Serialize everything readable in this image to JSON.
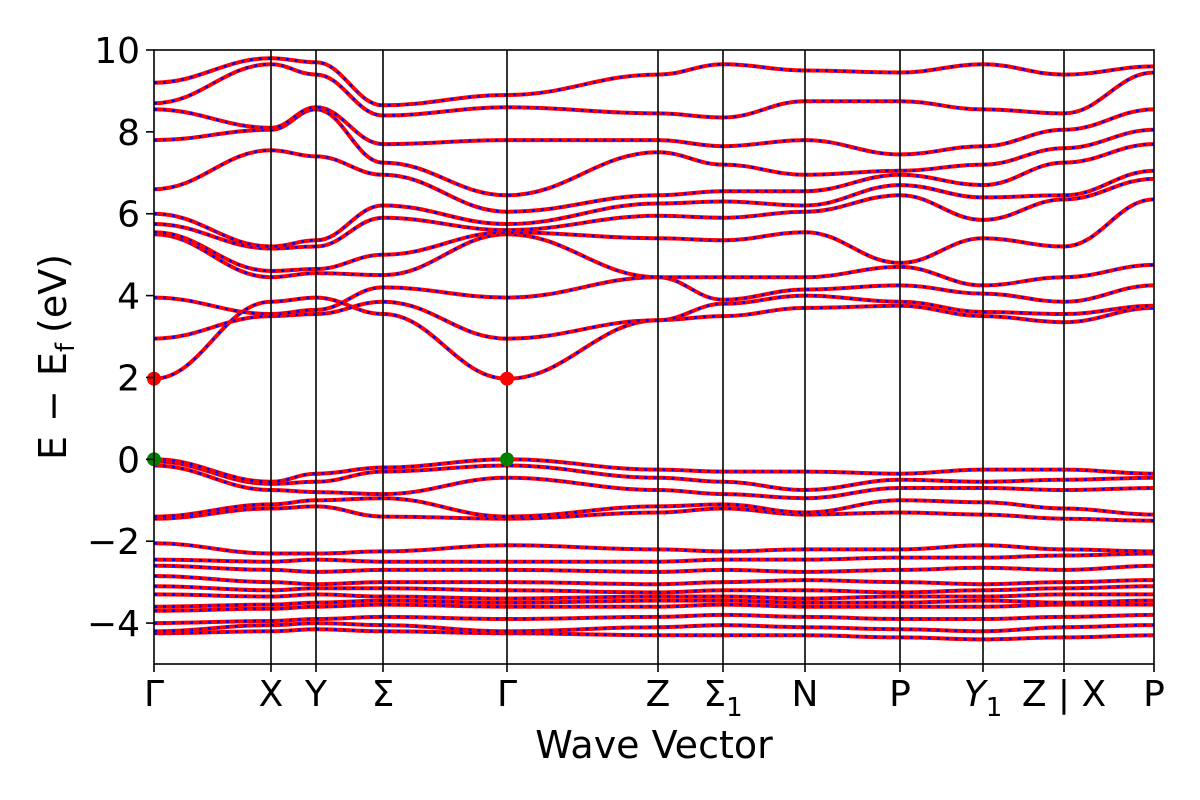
{
  "chart_data": {
    "type": "line",
    "title": "",
    "xlabel": "Wave Vector",
    "ylabel": "E − E_f (eV)",
    "ylabel_parts": {
      "e": "E",
      "minus": "−",
      "ef_base": "E",
      "ef_sub": "f",
      "unit": "(eV)"
    },
    "ylim": [
      -5,
      10
    ],
    "yticks": [
      {
        "value": -4,
        "label": "−4"
      },
      {
        "value": -2,
        "label": "−2"
      },
      {
        "value": 0,
        "label": "0"
      },
      {
        "value": 2,
        "label": "2"
      },
      {
        "value": 4,
        "label": "4"
      },
      {
        "value": 6,
        "label": "6"
      },
      {
        "value": 8,
        "label": "8"
      },
      {
        "value": 10,
        "label": "10"
      }
    ],
    "xrange": [
      0,
      10
    ],
    "kpoints": [
      {
        "x": 0.0,
        "label": "Γ"
      },
      {
        "x": 1.17,
        "label": "X"
      },
      {
        "x": 1.62,
        "label": "Y"
      },
      {
        "x": 2.29,
        "label": "Σ"
      },
      {
        "x": 3.53,
        "label": "Γ"
      },
      {
        "x": 5.04,
        "label": "Z"
      },
      {
        "x": 5.69,
        "label": "Σ",
        "sub": "1"
      },
      {
        "x": 6.51,
        "label": "N"
      },
      {
        "x": 7.46,
        "label": "P"
      },
      {
        "x": 8.29,
        "label": "Y",
        "sub": "1",
        "italic": true
      },
      {
        "x": 9.1,
        "label": "Z | X"
      },
      {
        "x": 10.0,
        "label": "P"
      }
    ],
    "series": [
      {
        "color": "#ff0000",
        "style": "solid"
      },
      {
        "color": "#0000ff",
        "style": "dotted"
      }
    ],
    "special_points": [
      {
        "x": 0.0,
        "y": 1.97,
        "color": "#ff0000"
      },
      {
        "x": 3.53,
        "y": 1.97,
        "color": "#ff0000"
      },
      {
        "x": 0.0,
        "y": 0.0,
        "color": "#008000"
      },
      {
        "x": 3.53,
        "y": 0.0,
        "color": "#008000"
      }
    ],
    "bands": [
      [
        -4.25,
        -4.2,
        -4.15,
        -4.2,
        -4.25,
        -4.3,
        -4.3,
        -4.3,
        -4.35,
        -4.4,
        -4.35,
        -4.3
      ],
      [
        -4.2,
        -4.05,
        -4.0,
        -4.05,
        -4.2,
        -4.1,
        -4.05,
        -4.1,
        -4.15,
        -4.2,
        -4.1,
        -4.05
      ],
      [
        -4.0,
        -3.95,
        -3.9,
        -3.85,
        -3.9,
        -3.85,
        -3.8,
        -3.85,
        -3.9,
        -3.9,
        -3.85,
        -3.8
      ],
      [
        -3.7,
        -3.65,
        -3.6,
        -3.55,
        -3.6,
        -3.6,
        -3.55,
        -3.6,
        -3.6,
        -3.6,
        -3.55,
        -3.55
      ],
      [
        -3.6,
        -3.55,
        -3.5,
        -3.45,
        -3.5,
        -3.45,
        -3.45,
        -3.5,
        -3.5,
        -3.45,
        -3.5,
        -3.45
      ],
      [
        -3.3,
        -3.35,
        -3.3,
        -3.35,
        -3.4,
        -3.35,
        -3.35,
        -3.4,
        -3.35,
        -3.35,
        -3.3,
        -3.3
      ],
      [
        -3.1,
        -3.2,
        -3.15,
        -3.15,
        -3.2,
        -3.25,
        -3.2,
        -3.2,
        -3.25,
        -3.2,
        -3.15,
        -3.1
      ],
      [
        -2.85,
        -3.0,
        -3.05,
        -3.0,
        -3.0,
        -3.05,
        -3.0,
        -2.95,
        -3.0,
        -3.05,
        -3.0,
        -2.95
      ],
      [
        -2.6,
        -2.7,
        -2.75,
        -2.7,
        -2.7,
        -2.75,
        -2.7,
        -2.75,
        -2.7,
        -2.65,
        -2.7,
        -2.6
      ],
      [
        -2.45,
        -2.5,
        -2.45,
        -2.5,
        -2.5,
        -2.5,
        -2.45,
        -2.45,
        -2.4,
        -2.4,
        -2.35,
        -2.3
      ],
      [
        -2.05,
        -2.3,
        -2.3,
        -2.25,
        -2.1,
        -2.2,
        -2.25,
        -2.2,
        -2.2,
        -2.1,
        -2.2,
        -2.25
      ],
      [
        -1.45,
        -1.2,
        -1.15,
        -1.4,
        -1.45,
        -1.3,
        -1.2,
        -1.35,
        -1.3,
        -1.35,
        -1.45,
        -1.5
      ],
      [
        -1.4,
        -1.1,
        -1.0,
        -0.95,
        -1.4,
        -1.15,
        -1.1,
        -1.3,
        -1.0,
        -1.05,
        -1.2,
        -1.35
      ],
      [
        -0.15,
        -0.75,
        -0.8,
        -0.85,
        -0.45,
        -0.75,
        -0.85,
        -0.95,
        -0.7,
        -0.7,
        -0.75,
        -0.7
      ],
      [
        -0.05,
        -0.6,
        -0.55,
        -0.3,
        -0.15,
        -0.45,
        -0.55,
        -0.75,
        -0.5,
        -0.55,
        -0.5,
        -0.45
      ],
      [
        0.0,
        -0.55,
        -0.35,
        -0.2,
        0.0,
        -0.25,
        -0.3,
        -0.3,
        -0.35,
        -0.25,
        -0.25,
        -0.35
      ],
      [
        1.97,
        3.85,
        3.95,
        3.55,
        1.97,
        3.4,
        3.5,
        3.7,
        3.75,
        3.5,
        3.35,
        3.7
      ],
      [
        2.95,
        3.5,
        3.55,
        3.85,
        2.95,
        3.4,
        3.8,
        4.0,
        3.85,
        3.6,
        3.55,
        3.75
      ],
      [
        3.95,
        3.55,
        3.65,
        4.2,
        3.95,
        4.45,
        3.9,
        4.15,
        4.25,
        4.05,
        3.85,
        4.25
      ],
      [
        5.5,
        4.45,
        4.55,
        4.5,
        5.5,
        4.45,
        4.45,
        4.45,
        4.7,
        4.25,
        4.45,
        4.75
      ],
      [
        5.55,
        4.6,
        4.65,
        5.0,
        5.55,
        5.4,
        5.35,
        5.55,
        4.8,
        5.4,
        5.2,
        6.35
      ],
      [
        5.75,
        5.15,
        5.2,
        5.9,
        5.6,
        5.95,
        5.9,
        6.05,
        6.45,
        5.85,
        6.35,
        6.85
      ],
      [
        6.0,
        5.2,
        5.35,
        6.2,
        5.75,
        6.25,
        6.3,
        6.2,
        6.7,
        6.4,
        6.45,
        7.05
      ],
      [
        6.6,
        7.55,
        7.4,
        6.95,
        6.05,
        6.45,
        6.55,
        6.55,
        6.95,
        6.7,
        7.25,
        7.7
      ],
      [
        7.8,
        8.05,
        8.55,
        7.25,
        6.45,
        7.5,
        7.2,
        6.95,
        7.05,
        7.2,
        7.6,
        8.05
      ],
      [
        8.55,
        8.1,
        8.6,
        7.7,
        7.8,
        7.8,
        7.65,
        7.8,
        7.45,
        7.65,
        8.05,
        8.55
      ],
      [
        8.7,
        9.65,
        9.4,
        8.4,
        8.6,
        8.45,
        8.35,
        8.75,
        8.75,
        8.55,
        8.45,
        9.45
      ],
      [
        9.2,
        9.8,
        9.7,
        8.65,
        8.9,
        9.4,
        9.65,
        9.5,
        9.45,
        9.65,
        9.4,
        9.6
      ]
    ]
  }
}
